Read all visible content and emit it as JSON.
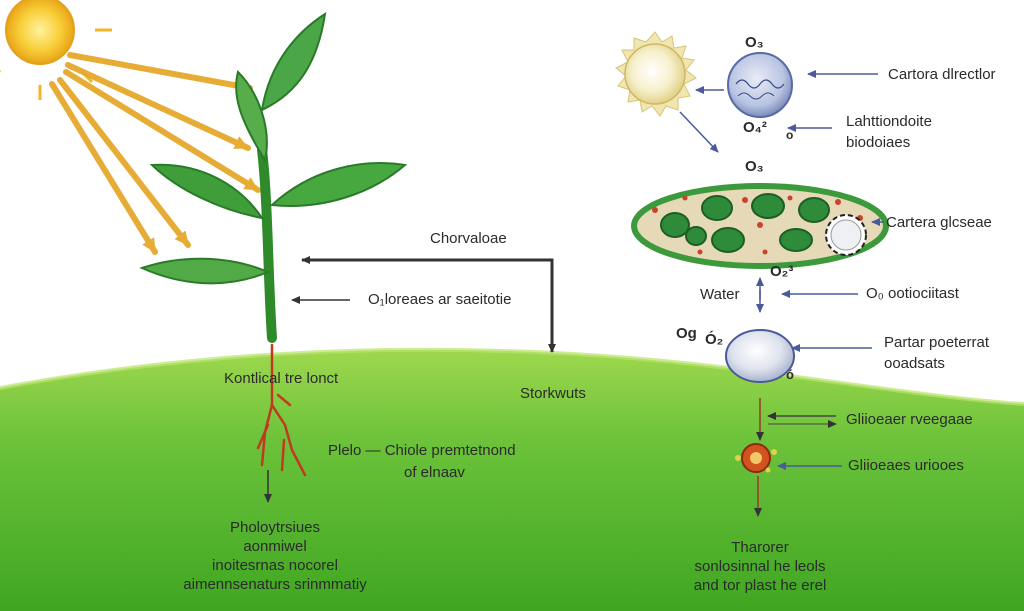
{
  "labels": {
    "chloroplast_top": "Chorvaloae",
    "stem_label": "O₁loreaes ar saeitotie",
    "root_zone": "Kontlical tre lonct",
    "ground": "Storkwuts",
    "root_desc_line1": "Plelo — Chiole premtetnond",
    "root_desc_line2": "of elnaav",
    "bottom_left": "Pholoytrsiues\naonmiwel\ninoitesrnas nocorel\naimennsenaturs srinmmatiy",
    "o3_top": "O₃",
    "o2_mid": "O₄²",
    "small_o": "o",
    "o3_second": "O₃",
    "right_1": "Cartora dlrectlor",
    "right_2_line1": "Lahttiondoite",
    "right_2_line2": "biodoiaes",
    "right_3": "Cartera glcseae",
    "o2_chloro": "O₂³",
    "water": "Water",
    "right_4": "O₀ ootiociitast",
    "og": "Og",
    "o2_cell": "Ó₂",
    "o2_small": "ó",
    "right_5_line1": "Partar poeterrat",
    "right_5_line2": "ooadsats",
    "right_6": "Gliioeaer rveegaae",
    "right_7": "Gliioeaes uriooes",
    "bottom_right": "Tharorer\nsonlosinnal he leols\nand tor plast he erel"
  },
  "colors": {
    "sky": "#ffffff",
    "grass_light": "#9ed84e",
    "grass_dark": "#3fa622",
    "leaf": "#3f9e3a",
    "leaf_dark": "#2a7a2a",
    "sun": "#f6c22a",
    "sun_ray": "#e0a32c",
    "arrow_blue": "#4a5a9a",
    "arrow_dark": "#333333",
    "root_red": "#c03a20",
    "chloroplast_fill": "#e6d9b8",
    "chloroplast_rim": "#3c9a3c",
    "granum": "#2e8b3a"
  },
  "icons": [
    "sun-icon",
    "plant-icon",
    "chloroplast-icon",
    "cell-icon",
    "molecule-icon"
  ]
}
